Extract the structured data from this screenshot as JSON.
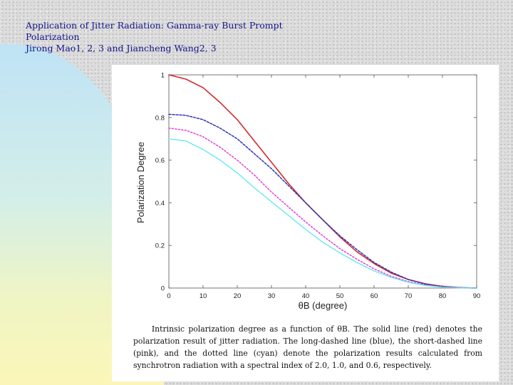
{
  "header": {
    "title_line1": "Application of Jitter Radiation: Gamma-ray Burst Prompt",
    "title_line2": "Polarization",
    "authors": "Jirong Mao1, 2, 3 and Jiancheng Wang2, 3"
  },
  "caption": "Intrinsic polarization degree as a function of θB. The solid line (red) denotes the polarization result of jitter radiation. The long-dashed line (blue), the short-dashed line (pink), and the dotted line (cyan) denote the polarization results calculated from synchrotron radiation with a spectral index of 2.0, 1.0, and 0.6, respectively.",
  "chart_data": {
    "type": "line",
    "title": "",
    "xlabel": "θB (degree)",
    "ylabel": "Polarization Degree",
    "xlim": [
      0,
      90
    ],
    "ylim": [
      0,
      1
    ],
    "xticks": [
      0,
      10,
      20,
      30,
      40,
      50,
      60,
      70,
      80,
      90
    ],
    "yticks": [
      0,
      0.2,
      0.4,
      0.6,
      0.8,
      1
    ],
    "ytick_labels": [
      "0",
      "0.2",
      "0.4",
      "0.6",
      "0.8",
      "1"
    ],
    "grid": false,
    "legend": "none",
    "x": [
      0,
      5,
      10,
      15,
      20,
      25,
      30,
      35,
      40,
      45,
      50,
      55,
      60,
      65,
      70,
      75,
      80,
      85,
      90
    ],
    "series": [
      {
        "color": "#d42a2a",
        "style": "solid",
        "values": [
          1.0,
          0.98,
          0.94,
          0.87,
          0.79,
          0.69,
          0.59,
          0.49,
          0.4,
          0.32,
          0.24,
          0.17,
          0.115,
          0.07,
          0.04,
          0.02,
          0.008,
          0.002,
          0.0
        ]
      },
      {
        "color": "#2a35b8",
        "style": "dash",
        "values": [
          0.815,
          0.81,
          0.79,
          0.75,
          0.7,
          0.63,
          0.56,
          0.48,
          0.4,
          0.32,
          0.245,
          0.18,
          0.12,
          0.075,
          0.04,
          0.018,
          0.007,
          0.002,
          0.0
        ]
      },
      {
        "color": "#e040d8",
        "style": "shortdash",
        "values": [
          0.75,
          0.74,
          0.71,
          0.66,
          0.6,
          0.53,
          0.45,
          0.38,
          0.31,
          0.245,
          0.185,
          0.135,
          0.09,
          0.055,
          0.03,
          0.014,
          0.005,
          0.001,
          0.0
        ]
      },
      {
        "color": "#5ee8ee",
        "style": "dot",
        "values": [
          0.7,
          0.69,
          0.65,
          0.6,
          0.54,
          0.47,
          0.405,
          0.34,
          0.275,
          0.215,
          0.165,
          0.12,
          0.08,
          0.05,
          0.027,
          0.012,
          0.004,
          0.001,
          0.0
        ]
      }
    ]
  }
}
